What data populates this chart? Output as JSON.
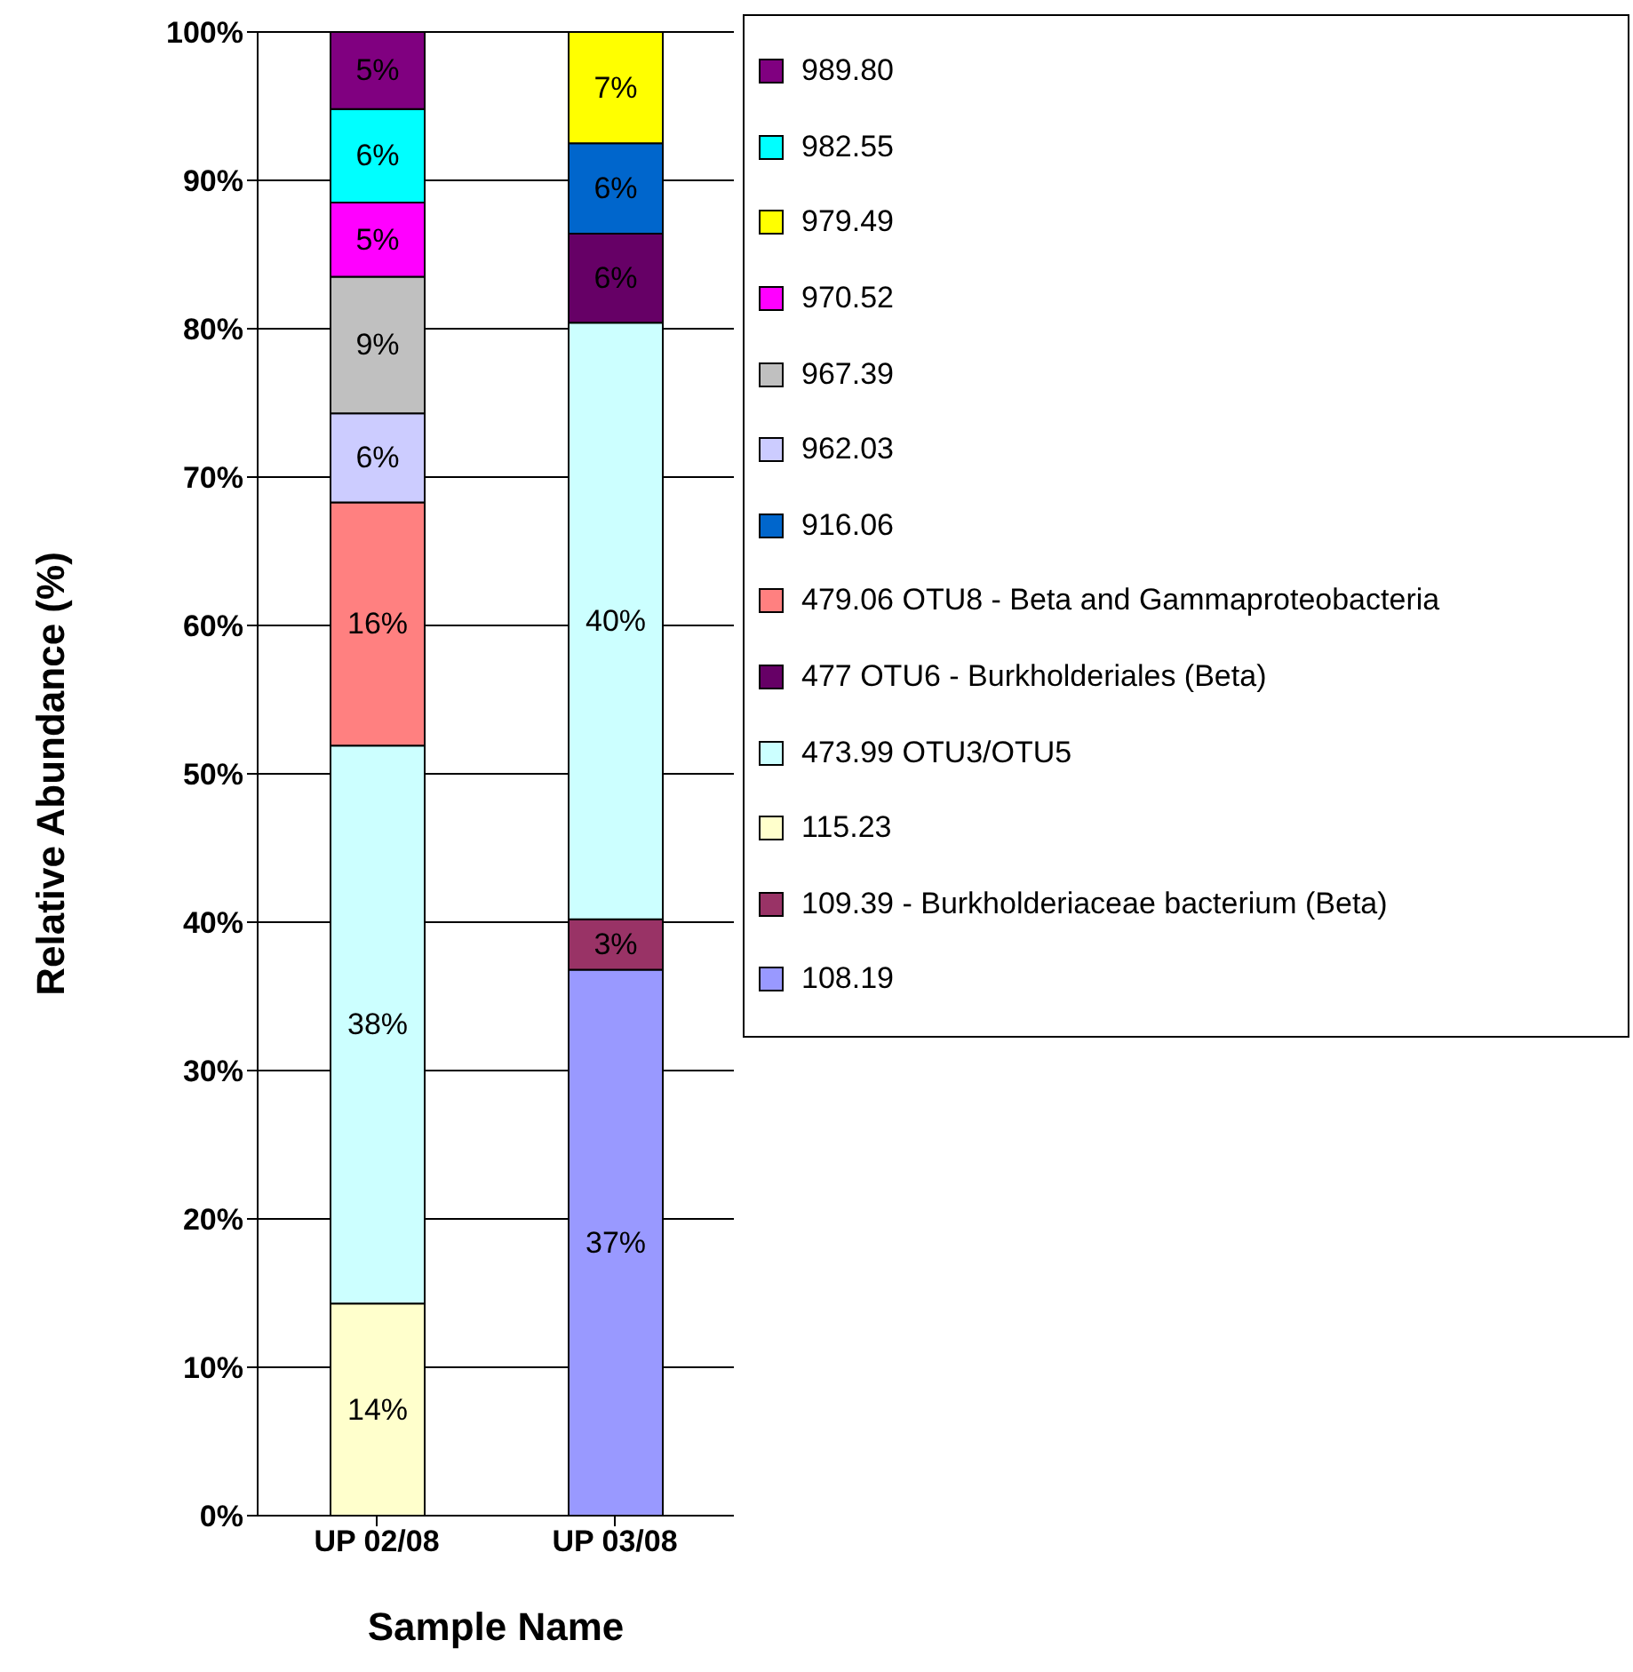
{
  "chart_data": {
    "type": "bar",
    "stacked": true,
    "xlabel": "Sample Name",
    "ylabel": "Relative Abundance (%)",
    "categories": [
      "UP 02/08",
      "UP 03/08"
    ],
    "ylim": [
      0,
      100
    ],
    "yticks": [
      {
        "value": 0,
        "label": "0%"
      },
      {
        "value": 10,
        "label": "10%"
      },
      {
        "value": 20,
        "label": "20%"
      },
      {
        "value": 30,
        "label": "30%"
      },
      {
        "value": 40,
        "label": "40%"
      },
      {
        "value": 50,
        "label": "50%"
      },
      {
        "value": 60,
        "label": "60%"
      },
      {
        "value": 70,
        "label": "70%"
      },
      {
        "value": 80,
        "label": "80%"
      },
      {
        "value": 90,
        "label": "90%"
      },
      {
        "value": 100,
        "label": "100%"
      }
    ],
    "grid": "y",
    "legend": "right",
    "series": [
      {
        "name": "108.19",
        "color": "#9999ff",
        "values": [
          null,
          36.8
        ],
        "value_labels": [
          null,
          "37%"
        ]
      },
      {
        "name": "109.39 - Burkholderiaceae bacterium (Beta)",
        "color": "#993366",
        "values": [
          null,
          3.4
        ],
        "value_labels": [
          null,
          "3%"
        ]
      },
      {
        "name": "115.23",
        "color": "#ffffcc",
        "values": [
          14.3,
          null
        ],
        "value_labels": [
          "14%",
          null
        ]
      },
      {
        "name": "473.99 OTU3/OTU5",
        "color": "#ccffff",
        "values": [
          37.6,
          40.2
        ],
        "value_labels": [
          "38%",
          "40%"
        ]
      },
      {
        "name": "477 OTU6 - Burkholderiales (Beta)",
        "color": "#660066",
        "values": [
          null,
          6.0
        ],
        "value_labels": [
          null,
          "6%"
        ]
      },
      {
        "name": "479.06 OTU8 - Beta and Gammaproteobacteria",
        "color": "#ff8080",
        "values": [
          16.4,
          null
        ],
        "value_labels": [
          "16%",
          null
        ]
      },
      {
        "name": "916.06",
        "color": "#0066cc",
        "values": [
          null,
          6.1
        ],
        "value_labels": [
          null,
          "6%"
        ]
      },
      {
        "name": "962.03",
        "color": "#ccccff",
        "values": [
          6.0,
          null
        ],
        "value_labels": [
          "6%",
          null
        ]
      },
      {
        "name": "967.39",
        "color": "#c0c0c0",
        "values": [
          9.2,
          null
        ],
        "value_labels": [
          "9%",
          null
        ]
      },
      {
        "name": "970.52",
        "color": "#ff00ff",
        "values": [
          5.0,
          null
        ],
        "value_labels": [
          "5%",
          null
        ]
      },
      {
        "name": "979.49",
        "color": "#ffff00",
        "values": [
          null,
          7.5
        ],
        "value_labels": [
          null,
          "7%"
        ]
      },
      {
        "name": "982.55",
        "color": "#00ffff",
        "values": [
          6.3,
          null
        ],
        "value_labels": [
          "6%",
          null
        ]
      },
      {
        "name": "989.80",
        "color": "#800080",
        "values": [
          5.2,
          null
        ],
        "value_labels": [
          "5%",
          null
        ]
      }
    ]
  }
}
